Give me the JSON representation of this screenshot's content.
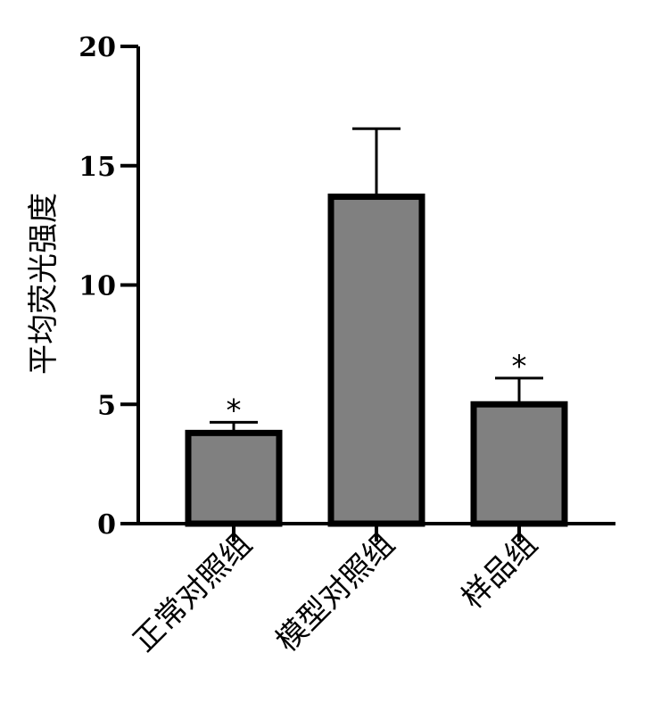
{
  "chart_data": {
    "type": "bar",
    "title": "",
    "xlabel": "",
    "ylabel": "平均荧光强度",
    "categories": [
      "正常对照组",
      "模型对照组",
      "样品组"
    ],
    "values": [
      3.8,
      13.7,
      5.0
    ],
    "errors": [
      0.45,
      2.85,
      1.1
    ],
    "significance": [
      "*",
      "",
      "*"
    ],
    "ylim": [
      0,
      20
    ],
    "yticks": [
      0,
      5,
      10,
      15,
      20
    ],
    "grid": false,
    "legend": "none",
    "colors": {
      "bar_fill": "#808080",
      "bar_stroke": "#000000",
      "axis": "#000000"
    }
  }
}
